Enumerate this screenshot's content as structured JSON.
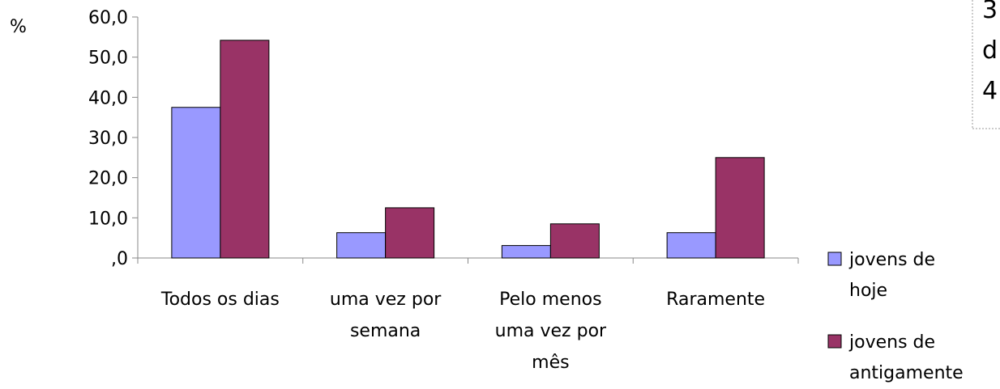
{
  "chart_data": {
    "type": "bar",
    "ylabel": "%",
    "ylim": [
      0,
      60
    ],
    "yticks": [
      0,
      10,
      20,
      30,
      40,
      50,
      60
    ],
    "ytick_labels": [
      ",0",
      "10,0",
      "20,0",
      "30,0",
      "40,0",
      "50,0",
      "60,0"
    ],
    "categories": [
      [
        "Todos os dias"
      ],
      [
        "uma vez por",
        "semana"
      ],
      [
        "Pelo menos",
        "uma vez por",
        "mês"
      ],
      [
        "Raramente"
      ]
    ],
    "series": [
      {
        "name": [
          "jovens de",
          "hoje"
        ],
        "color": "#9999ff",
        "values": [
          37.5,
          6.3,
          3.1,
          6.3
        ]
      },
      {
        "name": [
          "jovens de",
          "antigamente"
        ],
        "color": "#993366",
        "values": [
          54.2,
          12.5,
          8.5,
          25.0
        ]
      }
    ],
    "grid": false,
    "legend_position": "bottom-right"
  },
  "corner_box": {
    "lines": [
      "3",
      "d",
      "4"
    ]
  }
}
